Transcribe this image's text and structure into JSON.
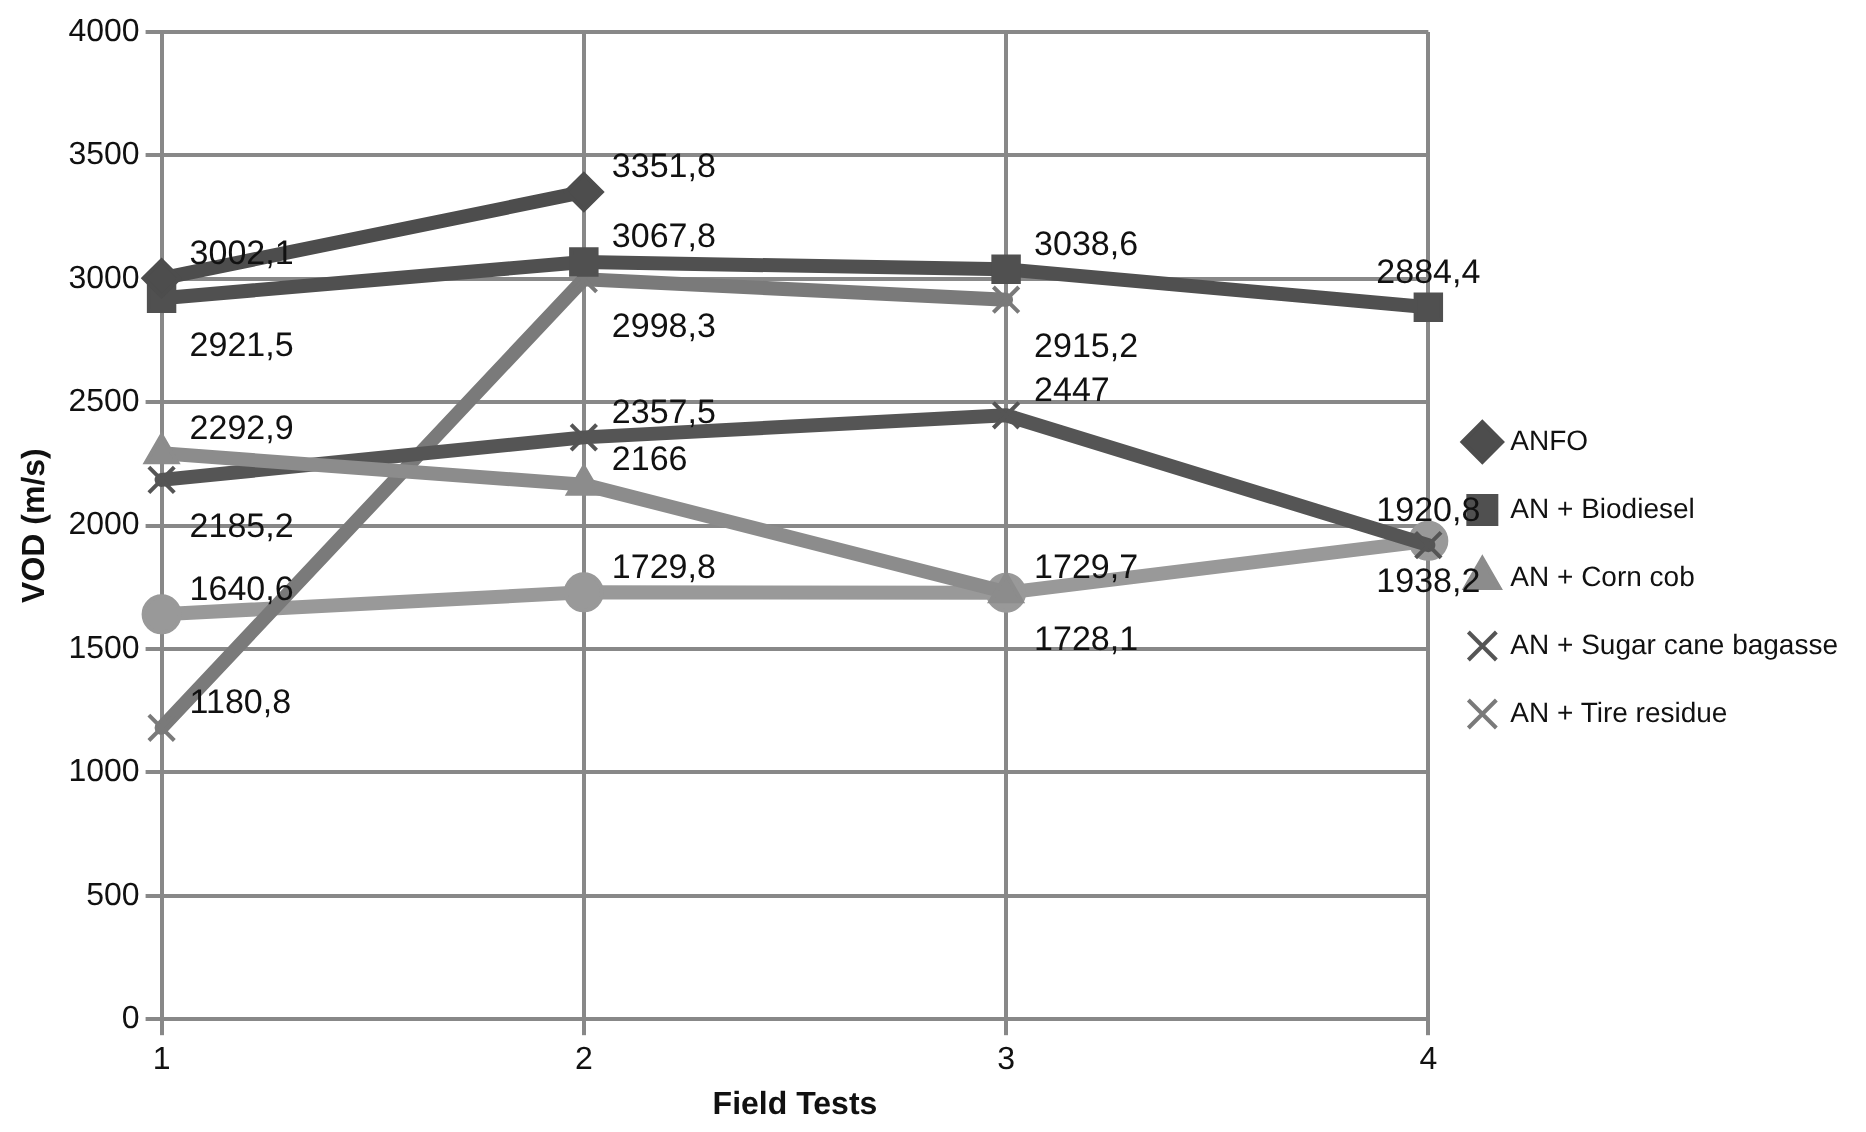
{
  "chart_data": {
    "type": "line",
    "xlabel": "Field Tests",
    "ylabel": "VOD (m/s)",
    "categories": [
      "1",
      "2",
      "3",
      "4"
    ],
    "ylim": [
      0,
      4000
    ],
    "yticks": [
      0,
      500,
      1000,
      1500,
      2000,
      2500,
      3000,
      3500,
      4000
    ],
    "grid": true,
    "legend": "right",
    "series": [
      {
        "name": "ANFO",
        "color": "#4d4d4d",
        "marker": "diamond",
        "values": [
          3002.1,
          3351.8,
          null,
          null
        ],
        "value_labels": [
          "3002,1",
          "3351,8",
          null,
          null
        ]
      },
      {
        "name": "AN + Biodiesel",
        "color": "#505050",
        "marker": "square",
        "values": [
          2921.5,
          3067.8,
          3038.6,
          2884.4
        ],
        "value_labels": [
          "2921,5",
          "3067,8",
          "3038,6",
          "2884,4"
        ]
      },
      {
        "name": "AN + Corn cob",
        "color": "#8c8c8c",
        "marker": "triangle",
        "values": [
          2292.9,
          2166,
          1729.7,
          null
        ],
        "value_labels": [
          "2292,9",
          "2166",
          "1729,7",
          null
        ]
      },
      {
        "name": "AN + Sugar cane bagasse",
        "color": "#555555",
        "marker": "cross",
        "values": [
          2185.2,
          2357.5,
          2447,
          1920.8
        ],
        "value_labels": [
          "2185,2",
          "2357,5",
          "2447",
          "1920,8"
        ]
      },
      {
        "name": "AN + Tire residue",
        "color": "#7a7a7a",
        "marker": "cross",
        "values": [
          1180.8,
          2998.3,
          2915.2,
          null
        ],
        "value_labels": [
          "1180,8",
          "2998,3",
          "2915,2",
          null
        ]
      },
      {
        "color": "#999999",
        "marker": "circle",
        "values": [
          1640.6,
          1729.8,
          1728.1,
          1938.2
        ],
        "value_labels": [
          "1640,6",
          "1729,8",
          "1728,1",
          "1938,2"
        ]
      }
    ]
  }
}
